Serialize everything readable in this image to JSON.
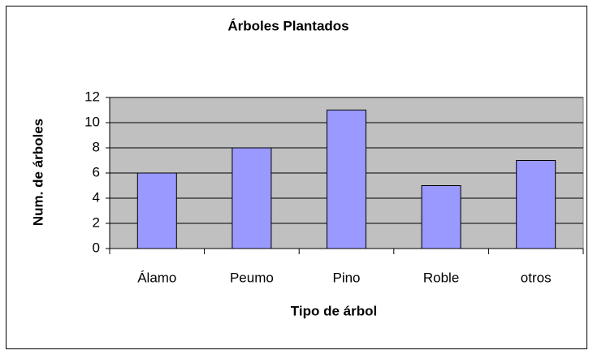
{
  "chart_data": {
    "type": "bar",
    "title": "Árboles Plantados",
    "x_label": "Tipo de árbol",
    "y_label": "Num. de árboles",
    "categories": [
      "Álamo",
      "Peumo",
      "Pino",
      "Roble",
      "otros"
    ],
    "values": [
      6,
      8,
      11,
      5,
      7
    ],
    "color": "#9999ff",
    "ylim": [
      0,
      12
    ],
    "yticks": [
      0,
      2,
      4,
      6,
      8,
      10,
      12
    ],
    "grid": true
  }
}
